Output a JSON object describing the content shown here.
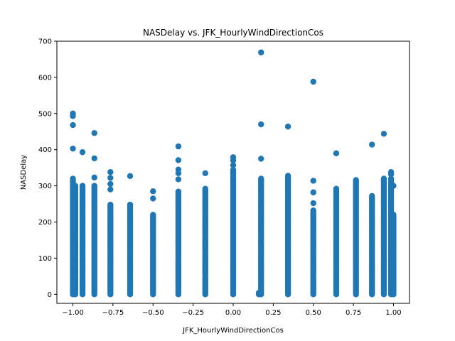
{
  "chart_data": {
    "type": "scatter",
    "title": "NASDelay vs. JFK_HourlyWindDirectionCos",
    "xlabel": "JFK_HourlyWindDirectionCos",
    "ylabel": "NASDelay",
    "xlim": [
      -1.1,
      1.1
    ],
    "ylim": [
      -25,
      700
    ],
    "xticks": [
      -1.0,
      -0.75,
      -0.5,
      -0.25,
      0.0,
      0.25,
      0.5,
      0.75,
      1.0
    ],
    "xtick_labels": [
      "−1.00",
      "−0.75",
      "−0.50",
      "−0.25",
      "0.00",
      "0.25",
      "0.50",
      "0.75",
      "1.00"
    ],
    "yticks": [
      0,
      100,
      200,
      300,
      400,
      500,
      600,
      700
    ],
    "ytick_labels": [
      "0",
      "100",
      "200",
      "300",
      "400",
      "500",
      "600",
      "700"
    ],
    "grid": false,
    "marker_color": "#1f77b4",
    "columns": [
      {
        "x": -1.0,
        "max": 320,
        "outliers": [
          493,
          500,
          468,
          403
        ]
      },
      {
        "x": -0.985,
        "max": 300,
        "outliers": []
      },
      {
        "x": -0.94,
        "max": 300,
        "outliers": [
          393
        ]
      },
      {
        "x": -0.866,
        "max": 300,
        "outliers": [
          446,
          376,
          323
        ]
      },
      {
        "x": -0.766,
        "max": 250,
        "outliers": [
          338,
          322,
          305,
          290
        ]
      },
      {
        "x": -0.643,
        "max": 248,
        "outliers": [
          327
        ]
      },
      {
        "x": -0.5,
        "max": 222,
        "outliers": [
          285,
          265
        ]
      },
      {
        "x": -0.342,
        "max": 285,
        "outliers": [
          409,
          371,
          345,
          335,
          318
        ]
      },
      {
        "x": -0.174,
        "max": 292,
        "outliers": [
          335
        ]
      },
      {
        "x": 0.0,
        "max": 345,
        "outliers": [
          379,
          370,
          357
        ]
      },
      {
        "x": 0.16,
        "max": 5,
        "outliers": []
      },
      {
        "x": 0.174,
        "max": 320,
        "outliers": [
          669,
          470,
          375
        ]
      },
      {
        "x": 0.342,
        "max": 330,
        "outliers": [
          464
        ]
      },
      {
        "x": 0.5,
        "max": 235,
        "outliers": [
          588,
          314,
          282,
          252
        ]
      },
      {
        "x": 0.643,
        "max": 292,
        "outliers": [
          390
        ]
      },
      {
        "x": 0.766,
        "max": 318,
        "outliers": []
      },
      {
        "x": 0.866,
        "max": 275,
        "outliers": [
          414
        ]
      },
      {
        "x": 0.94,
        "max": 322,
        "outliers": [
          444
        ]
      },
      {
        "x": 0.985,
        "max": 322,
        "outliers": [
          338,
          332
        ]
      },
      {
        "x": 1.0,
        "max": 220,
        "outliers": [
          300
        ]
      }
    ]
  }
}
